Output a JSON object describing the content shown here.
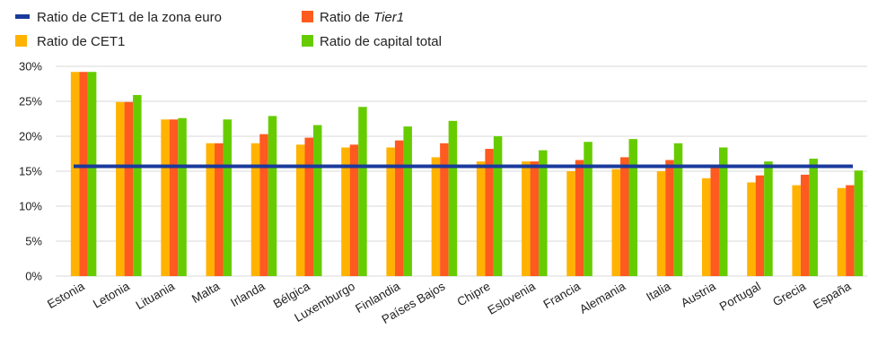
{
  "chart_data": {
    "type": "bar",
    "categories": [
      "Estonia",
      "Letonia",
      "Lituania",
      "Malta",
      "Irlanda",
      "Bélgica",
      "Luxemburgo",
      "Finlandia",
      "Países Bajos",
      "Chipre",
      "Eslovenia",
      "Francia",
      "Alemania",
      "Italia",
      "Austria",
      "Portugal",
      "Grecia",
      "España"
    ],
    "series": [
      {
        "name": "Ratio de CET1",
        "color": "#ffb300",
        "values": [
          29.2,
          24.9,
          22.4,
          19.0,
          19.0,
          18.8,
          18.4,
          18.4,
          17.0,
          16.4,
          16.4,
          15.0,
          15.3,
          15.0,
          14.0,
          13.4,
          13.0,
          12.6
        ]
      },
      {
        "name": "Ratio de Tier1",
        "name_prefix": "Ratio de ",
        "name_italic": "Tier1",
        "color": "#ff5a1f",
        "values": [
          29.2,
          24.9,
          22.4,
          19.0,
          20.3,
          19.8,
          18.8,
          19.4,
          19.0,
          18.2,
          16.4,
          16.6,
          17.0,
          16.6,
          15.5,
          14.4,
          14.5,
          13.0
        ]
      },
      {
        "name": "Ratio de capital total",
        "color": "#66cc00",
        "values": [
          29.2,
          25.9,
          22.6,
          22.4,
          22.9,
          21.6,
          24.2,
          21.4,
          22.2,
          20.0,
          18.0,
          19.2,
          19.6,
          19.0,
          18.4,
          16.4,
          16.8,
          15.1
        ]
      }
    ],
    "reference_line": {
      "name": "Ratio de CET1 de la zona euro",
      "value": 15.7,
      "color": "#1a3a9c"
    },
    "y_ticks": [
      "0%",
      "5%",
      "10%",
      "15%",
      "20%",
      "25%",
      "30%"
    ],
    "ylim": [
      0,
      30
    ],
    "grid": true,
    "legend_position": "top-left"
  }
}
